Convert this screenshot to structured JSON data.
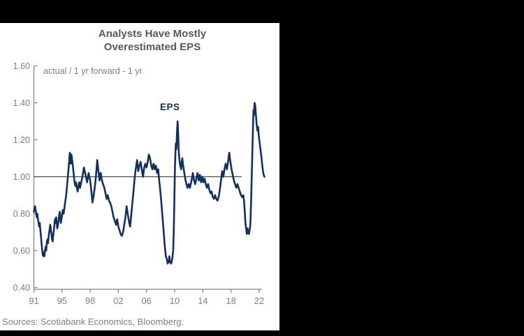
{
  "chart": {
    "title_line1": "Analysts Have Mostly",
    "title_line2": "Overestimated EPS",
    "annotation": "actual / 1 yr forward - 1 yr",
    "series_label": "EPS",
    "sources": "Sources: Scotiabank Economics, Bloomberg.",
    "colors": {
      "page_bg": "#000000",
      "panel_bg": "#ffffff",
      "title_text": "#595959",
      "axis": "#7f7f7f",
      "reference_line": "#4d4d4d",
      "series_line": "#12305e"
    }
  },
  "chart_data": {
    "type": "line",
    "title": "Analysts Have Mostly Overestimated EPS",
    "subtitle_note": "actual / 1 yr forward - 1 yr",
    "xlabel": "",
    "ylabel": "",
    "ylim": [
      0.4,
      1.6
    ],
    "grid": false,
    "legend_position": "none",
    "reference_line_y": 1.0,
    "y_ticks": [
      "0.40",
      "0.60",
      "0.80",
      "1.00",
      "1.20",
      "1.40",
      "1.60"
    ],
    "y_tick_values": [
      0.4,
      0.6,
      0.8,
      1.0,
      1.2,
      1.4,
      1.6
    ],
    "x_tick_labels": [
      "91",
      "95",
      "98",
      "02",
      "06",
      "10",
      "14",
      "18",
      "22"
    ],
    "x_tick_years": [
      1991,
      1995,
      1998,
      2002,
      2006,
      2010,
      2014,
      2018,
      2022
    ],
    "series": [
      {
        "name": "EPS",
        "color": "#12305e",
        "points": [
          [
            1991,
            0.81
          ],
          [
            1991.08,
            0.83
          ],
          [
            1991.17,
            0.84
          ],
          [
            1991.25,
            0.82
          ],
          [
            1991.33,
            0.8
          ],
          [
            1991.42,
            0.78
          ],
          [
            1991.5,
            0.8
          ],
          [
            1991.58,
            0.77
          ],
          [
            1991.67,
            0.75
          ],
          [
            1991.75,
            0.73
          ],
          [
            1991.83,
            0.75
          ],
          [
            1991.92,
            0.71
          ],
          [
            1992,
            0.68
          ],
          [
            1992.08,
            0.64
          ],
          [
            1992.17,
            0.61
          ],
          [
            1992.25,
            0.58
          ],
          [
            1992.33,
            0.57
          ],
          [
            1992.42,
            0.59
          ],
          [
            1992.5,
            0.57
          ],
          [
            1992.58,
            0.6
          ],
          [
            1992.67,
            0.62
          ],
          [
            1992.75,
            0.6
          ],
          [
            1992.83,
            0.64
          ],
          [
            1992.92,
            0.66
          ],
          [
            1993,
            0.64
          ],
          [
            1993.08,
            0.67
          ],
          [
            1993.17,
            0.7
          ],
          [
            1993.25,
            0.72
          ],
          [
            1993.33,
            0.74
          ],
          [
            1993.42,
            0.71
          ],
          [
            1993.5,
            0.69
          ],
          [
            1993.58,
            0.66
          ],
          [
            1993.67,
            0.65
          ],
          [
            1993.75,
            0.68
          ],
          [
            1993.83,
            0.71
          ],
          [
            1993.92,
            0.74
          ],
          [
            1994,
            0.77
          ],
          [
            1994.08,
            0.75
          ],
          [
            1994.17,
            0.78
          ],
          [
            1994.25,
            0.75
          ],
          [
            1994.33,
            0.72
          ],
          [
            1994.42,
            0.74
          ],
          [
            1994.5,
            0.76
          ],
          [
            1994.58,
            0.79
          ],
          [
            1994.67,
            0.81
          ],
          [
            1994.75,
            0.78
          ],
          [
            1994.83,
            0.75
          ],
          [
            1994.92,
            0.77
          ],
          [
            1995,
            0.79
          ],
          [
            1995.08,
            0.82
          ],
          [
            1995.17,
            0.8
          ],
          [
            1995.25,
            0.83
          ],
          [
            1995.33,
            0.86
          ],
          [
            1995.42,
            0.89
          ],
          [
            1995.5,
            0.93
          ],
          [
            1995.58,
            0.98
          ],
          [
            1995.67,
            1.03
          ],
          [
            1995.75,
            1.08
          ],
          [
            1995.83,
            1.13
          ],
          [
            1995.92,
            1.07
          ],
          [
            1996,
            1.12
          ],
          [
            1996.08,
            1.09
          ],
          [
            1996.17,
            1.05
          ],
          [
            1996.25,
            1.01
          ],
          [
            1996.33,
            0.97
          ],
          [
            1996.42,
            0.95
          ],
          [
            1996.5,
            0.97
          ],
          [
            1996.58,
            0.94
          ],
          [
            1996.67,
            0.92
          ],
          [
            1996.75,
            0.95
          ],
          [
            1996.83,
            0.97
          ],
          [
            1996.92,
            0.94
          ],
          [
            1997,
            0.96
          ],
          [
            1997.17,
            1
          ],
          [
            1997.33,
            1.05
          ],
          [
            1997.5,
            1.01
          ],
          [
            1997.67,
            0.97
          ],
          [
            1997.83,
            1.02
          ],
          [
            1998,
            0.98
          ],
          [
            1998.17,
            0.92
          ],
          [
            1998.33,
            0.86
          ],
          [
            1998.5,
            0.9
          ],
          [
            1998.67,
            0.95
          ],
          [
            1998.83,
            1.01
          ],
          [
            1999,
            1.09
          ],
          [
            1999.17,
            1.03
          ],
          [
            1999.33,
            0.98
          ],
          [
            1999.5,
            1.02
          ],
          [
            1999.67,
            0.98
          ],
          [
            1999.83,
            0.96
          ],
          [
            2000,
            0.94
          ],
          [
            2000.17,
            0.91
          ],
          [
            2000.33,
            0.88
          ],
          [
            2000.5,
            0.9
          ],
          [
            2000.67,
            0.87
          ],
          [
            2000.83,
            0.86
          ],
          [
            2001,
            0.84
          ],
          [
            2001.17,
            0.81
          ],
          [
            2001.33,
            0.78
          ],
          [
            2001.5,
            0.76
          ],
          [
            2001.67,
            0.74
          ],
          [
            2001.83,
            0.77
          ],
          [
            2002,
            0.73
          ],
          [
            2002.17,
            0.71
          ],
          [
            2002.33,
            0.69
          ],
          [
            2002.5,
            0.68
          ],
          [
            2002.67,
            0.7
          ],
          [
            2002.83,
            0.74
          ],
          [
            2003,
            0.78
          ],
          [
            2003.17,
            0.84
          ],
          [
            2003.33,
            0.8
          ],
          [
            2003.5,
            0.76
          ],
          [
            2003.67,
            0.73
          ],
          [
            2003.83,
            0.79
          ],
          [
            2004,
            0.86
          ],
          [
            2004.17,
            0.93
          ],
          [
            2004.33,
            1
          ],
          [
            2004.5,
            1.05
          ],
          [
            2004.67,
            1.09
          ],
          [
            2004.83,
            1.03
          ],
          [
            2005,
            1.06
          ],
          [
            2005.17,
            1.08
          ],
          [
            2005.33,
            1.04
          ],
          [
            2005.5,
            1
          ],
          [
            2005.67,
            1.05
          ],
          [
            2005.83,
            1.07
          ],
          [
            2006,
            1.05
          ],
          [
            2006.17,
            1.08
          ],
          [
            2006.33,
            1.12
          ],
          [
            2006.5,
            1.1
          ],
          [
            2006.67,
            1.06
          ],
          [
            2006.83,
            1.04
          ],
          [
            2007,
            1.07
          ],
          [
            2007.17,
            1.04
          ],
          [
            2007.33,
            1.06
          ],
          [
            2007.5,
            1.02
          ],
          [
            2007.67,
            1.04
          ],
          [
            2007.75,
            1
          ],
          [
            2007.92,
            0.94
          ],
          [
            2008.08,
            0.87
          ],
          [
            2008.25,
            0.79
          ],
          [
            2008.42,
            0.71
          ],
          [
            2008.58,
            0.63
          ],
          [
            2008.75,
            0.57
          ],
          [
            2008.92,
            0.55
          ],
          [
            2009,
            0.53
          ],
          [
            2009.17,
            0.54
          ],
          [
            2009.25,
            0.57
          ],
          [
            2009.33,
            0.54
          ],
          [
            2009.5,
            0.53
          ],
          [
            2009.67,
            0.56
          ],
          [
            2009.79,
            0.6
          ],
          [
            2009.88,
            0.72
          ],
          [
            2009.96,
            0.88
          ],
          [
            2010.04,
            1.05
          ],
          [
            2010.13,
            1.15
          ],
          [
            2010.17,
            1.18
          ],
          [
            2010.25,
            1.15
          ],
          [
            2010.33,
            1.24
          ],
          [
            2010.42,
            1.3
          ],
          [
            2010.5,
            1.24
          ],
          [
            2010.58,
            1.14
          ],
          [
            2010.67,
            1.09
          ],
          [
            2010.79,
            1.06
          ],
          [
            2010.92,
            1.04
          ],
          [
            2011,
            1.08
          ],
          [
            2011.08,
            1.1
          ],
          [
            2011.17,
            1.07
          ],
          [
            2011.33,
            1.03
          ],
          [
            2011.5,
            0.99
          ],
          [
            2011.67,
            0.96
          ],
          [
            2011.83,
            0.94
          ],
          [
            2012,
            0.96
          ],
          [
            2012.17,
            0.94
          ],
          [
            2012.33,
            0.97
          ],
          [
            2012.5,
            1
          ],
          [
            2012.58,
            1.02
          ],
          [
            2012.75,
            0.98
          ],
          [
            2012.92,
            0.96
          ],
          [
            2013.08,
            0.99
          ],
          [
            2013.25,
            1.02
          ],
          [
            2013.42,
            0.98
          ],
          [
            2013.58,
            1.01
          ],
          [
            2013.75,
            0.97
          ],
          [
            2013.92,
            1
          ],
          [
            2014.08,
            0.97
          ],
          [
            2014.25,
            0.99
          ],
          [
            2014.42,
            0.96
          ],
          [
            2014.58,
            0.94
          ],
          [
            2014.75,
            0.96
          ],
          [
            2014.92,
            0.93
          ],
          [
            2015.08,
            0.91
          ],
          [
            2015.25,
            0.92
          ],
          [
            2015.42,
            0.89
          ],
          [
            2015.58,
            0.88
          ],
          [
            2015.75,
            0.9
          ],
          [
            2015.92,
            0.88
          ],
          [
            2016.08,
            0.87
          ],
          [
            2016.25,
            0.89
          ],
          [
            2016.42,
            0.93
          ],
          [
            2016.58,
            0.98
          ],
          [
            2016.75,
            1.03
          ],
          [
            2016.92,
            1
          ],
          [
            2017.08,
            1.04
          ],
          [
            2017.25,
            1.07
          ],
          [
            2017.42,
            1.04
          ],
          [
            2017.58,
            1.08
          ],
          [
            2017.75,
            1.13
          ],
          [
            2017.92,
            1.08
          ],
          [
            2018.08,
            1.04
          ],
          [
            2018.25,
            1.01
          ],
          [
            2018.42,
            0.98
          ],
          [
            2018.58,
            0.96
          ],
          [
            2018.75,
            0.94
          ],
          [
            2018.92,
            0.96
          ],
          [
            2019.08,
            0.94
          ],
          [
            2019.25,
            0.92
          ],
          [
            2019.42,
            0.9
          ],
          [
            2019.58,
            0.89
          ],
          [
            2019.75,
            0.9
          ],
          [
            2019.85,
            0.87
          ],
          [
            2019.95,
            0.82
          ],
          [
            2020.05,
            0.75
          ],
          [
            2020.15,
            0.72
          ],
          [
            2020.25,
            0.69
          ],
          [
            2020.35,
            0.72
          ],
          [
            2020.45,
            0.7
          ],
          [
            2020.55,
            0.69
          ],
          [
            2020.65,
            0.71
          ],
          [
            2020.75,
            0.74
          ],
          [
            2020.85,
            0.85
          ],
          [
            2020.95,
            1
          ],
          [
            2021.05,
            1.15
          ],
          [
            2021.15,
            1.3
          ],
          [
            2021.2,
            1.36
          ],
          [
            2021.25,
            1.33
          ],
          [
            2021.35,
            1.4
          ],
          [
            2021.45,
            1.38
          ],
          [
            2021.55,
            1.33
          ],
          [
            2021.65,
            1.28
          ],
          [
            2021.75,
            1.25
          ],
          [
            2021.85,
            1.27
          ],
          [
            2021.95,
            1.22
          ],
          [
            2022.05,
            1.19
          ],
          [
            2022.15,
            1.16
          ],
          [
            2022.25,
            1.13
          ],
          [
            2022.35,
            1.1
          ],
          [
            2022.45,
            1.06
          ],
          [
            2022.55,
            1.03
          ],
          [
            2022.65,
            1.01
          ],
          [
            2022.75,
            1
          ]
        ]
      }
    ]
  }
}
